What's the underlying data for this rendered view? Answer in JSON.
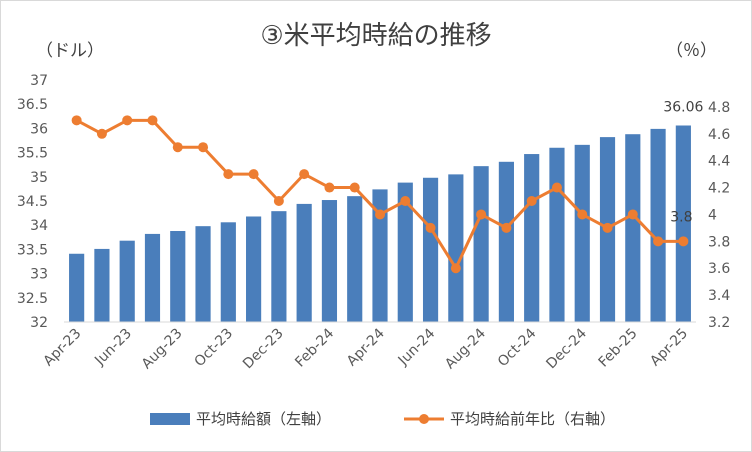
{
  "chart_data": {
    "type": "bar+line",
    "title": "③米平均時給の推移",
    "left_unit": "（ドル）",
    "right_unit": "（％）",
    "x": [
      "Apr-23",
      "May-23",
      "Jun-23",
      "Jul-23",
      "Aug-23",
      "Sep-23",
      "Oct-23",
      "Nov-23",
      "Dec-23",
      "Jan-24",
      "Feb-24",
      "Mar-24",
      "Apr-24",
      "May-24",
      "Jun-24",
      "Jul-24",
      "Aug-24",
      "Sep-24",
      "Oct-24",
      "Nov-24",
      "Dec-24",
      "Jan-25",
      "Feb-25",
      "Mar-25",
      "Apr-25"
    ],
    "x_tick_labels": [
      "Apr-23",
      "Jun-23",
      "Aug-23",
      "Oct-23",
      "Dec-23",
      "Feb-24",
      "Apr-24",
      "Jun-24",
      "Aug-24",
      "Oct-24",
      "Dec-24",
      "Feb-25",
      "Apr-25"
    ],
    "series": [
      {
        "name": "平均時給額（左軸）",
        "type": "bar",
        "axis": "left",
        "color": "#4a7ebb",
        "values": [
          33.41,
          33.51,
          33.68,
          33.82,
          33.88,
          33.98,
          34.06,
          34.18,
          34.29,
          34.44,
          34.52,
          34.6,
          34.74,
          34.88,
          34.98,
          35.05,
          35.22,
          35.31,
          35.47,
          35.6,
          35.66,
          35.82,
          35.88,
          35.99,
          36.06
        ]
      },
      {
        "name": "平均時給前年比（右軸）",
        "type": "line",
        "axis": "right",
        "color": "#ed7d31",
        "values": [
          4.7,
          4.6,
          4.7,
          4.7,
          4.5,
          4.5,
          4.3,
          4.3,
          4.1,
          4.3,
          4.2,
          4.2,
          4.0,
          4.1,
          3.9,
          3.6,
          4.0,
          3.9,
          4.1,
          4.2,
          4.0,
          3.9,
          4.0,
          3.8,
          3.8
        ]
      }
    ],
    "left_axis": {
      "min": 32,
      "max": 37,
      "step": 0.5,
      "tick_labels": [
        "32",
        "32.5",
        "33",
        "33.5",
        "34",
        "34.5",
        "35",
        "35.5",
        "36",
        "36.5",
        "37"
      ]
    },
    "right_axis": {
      "min": 3.2,
      "max": 5.0,
      "step": 0.2,
      "tick_labels": [
        "3.2",
        "3.4",
        "3.6",
        "3.8",
        "4",
        "4.2",
        "4.4",
        "4.6",
        "4.8"
      ]
    },
    "data_labels": {
      "bar_last": "36.06",
      "line_last": "3.8"
    },
    "grid": false,
    "legend_position": "bottom"
  }
}
